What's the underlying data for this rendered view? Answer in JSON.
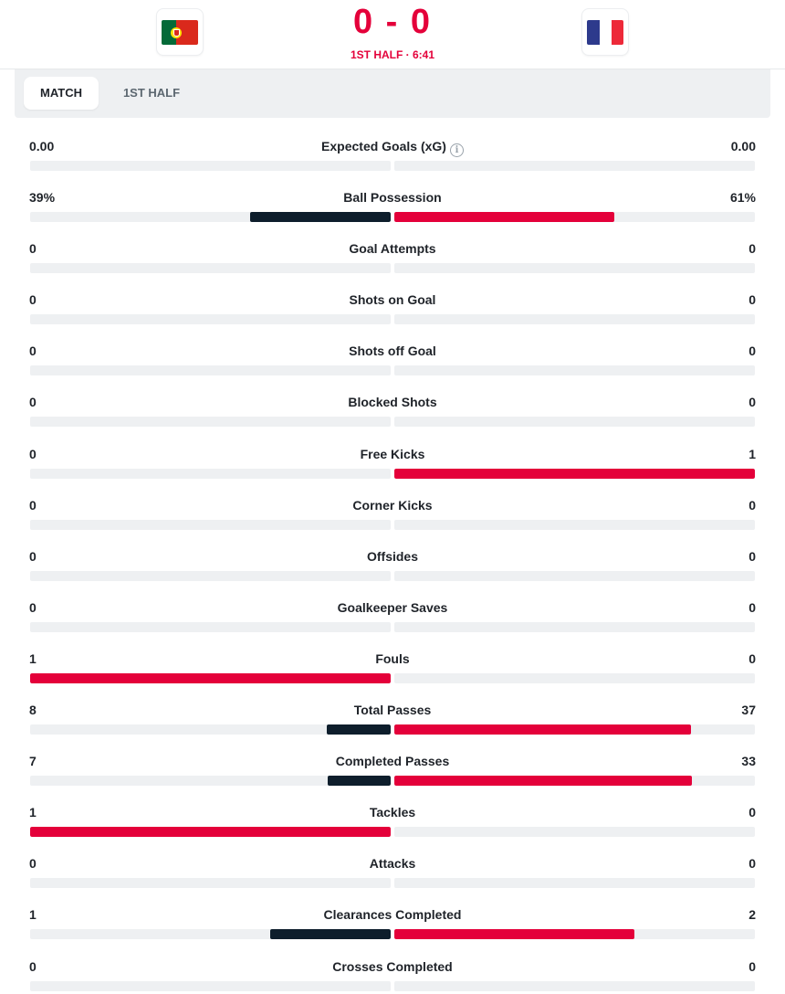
{
  "match": {
    "home_flag_icon": "portugal-flag-icon",
    "away_flag_icon": "france-flag-icon",
    "score": "0 - 0",
    "period": "1ST HALF · 6:41"
  },
  "tabs": [
    {
      "label": "MATCH",
      "active": true
    },
    {
      "label": "1ST HALF",
      "active": false
    }
  ],
  "colors": {
    "accent": "#e4003a",
    "leader_bar": "#e4003a",
    "trailer_bar": "#0e1e2c",
    "track": "#eef0f2"
  },
  "stats": [
    {
      "label": "Expected Goals (xG)",
      "home": "0.00",
      "away": "0.00",
      "home_share": 0,
      "away_share": 0,
      "info_icon": true
    },
    {
      "label": "Ball Possession",
      "home": "39%",
      "away": "61%",
      "home_share": 0.39,
      "away_share": 0.61
    },
    {
      "label": "Goal Attempts",
      "home": "0",
      "away": "0",
      "home_share": 0,
      "away_share": 0
    },
    {
      "label": "Shots on Goal",
      "home": "0",
      "away": "0",
      "home_share": 0,
      "away_share": 0
    },
    {
      "label": "Shots off Goal",
      "home": "0",
      "away": "0",
      "home_share": 0,
      "away_share": 0
    },
    {
      "label": "Blocked Shots",
      "home": "0",
      "away": "0",
      "home_share": 0,
      "away_share": 0
    },
    {
      "label": "Free Kicks",
      "home": "0",
      "away": "1",
      "home_share": 0,
      "away_share": 1
    },
    {
      "label": "Corner Kicks",
      "home": "0",
      "away": "0",
      "home_share": 0,
      "away_share": 0
    },
    {
      "label": "Offsides",
      "home": "0",
      "away": "0",
      "home_share": 0,
      "away_share": 0
    },
    {
      "label": "Goalkeeper Saves",
      "home": "0",
      "away": "0",
      "home_share": 0,
      "away_share": 0
    },
    {
      "label": "Fouls",
      "home": "1",
      "away": "0",
      "home_share": 1,
      "away_share": 0
    },
    {
      "label": "Total Passes",
      "home": "8",
      "away": "37",
      "home_share": 0.178,
      "away_share": 0.822
    },
    {
      "label": "Completed Passes",
      "home": "7",
      "away": "33",
      "home_share": 0.175,
      "away_share": 0.825
    },
    {
      "label": "Tackles",
      "home": "1",
      "away": "0",
      "home_share": 1,
      "away_share": 0
    },
    {
      "label": "Attacks",
      "home": "0",
      "away": "0",
      "home_share": 0,
      "away_share": 0
    },
    {
      "label": "Clearances Completed",
      "home": "1",
      "away": "2",
      "home_share": 0.333,
      "away_share": 0.667
    },
    {
      "label": "Crosses Completed",
      "home": "0",
      "away": "0",
      "home_share": 0,
      "away_share": 0
    }
  ]
}
